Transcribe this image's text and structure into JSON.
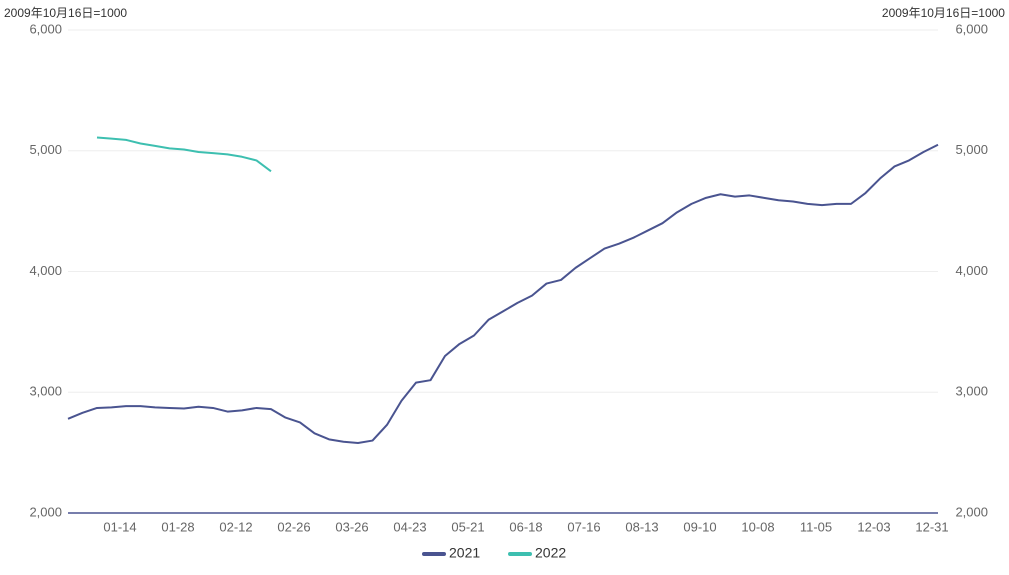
{
  "chart_data": {
    "type": "line",
    "y_label": "2009年10月16日=1000",
    "y2_label": "2009年10月16日=1000",
    "categories": [
      null,
      null,
      null,
      null,
      "01-14",
      null,
      null,
      null,
      "01-28",
      null,
      null,
      null,
      "02-12",
      null,
      null,
      null,
      "02-26",
      null,
      null,
      null,
      "03-26",
      null,
      null,
      null,
      "04-23",
      null,
      null,
      null,
      "05-21",
      null,
      null,
      null,
      "06-18",
      null,
      null,
      null,
      "07-16",
      null,
      null,
      null,
      "08-13",
      null,
      null,
      null,
      "09-10",
      null,
      null,
      null,
      "10-08",
      null,
      null,
      null,
      "11-05",
      null,
      null,
      null,
      "12-03",
      null,
      null,
      null,
      "12-31"
    ],
    "series": [
      {
        "name": "2021",
        "color": "#4a5490",
        "values": [
          2780,
          2830,
          2870,
          2875,
          2885,
          2885,
          2875,
          2870,
          2865,
          2880,
          2870,
          2840,
          2850,
          2870,
          2860,
          2790,
          2750,
          2660,
          2610,
          2590,
          2580,
          2600,
          2730,
          2930,
          3080,
          3100,
          3300,
          3400,
          3470,
          3600,
          3670,
          3740,
          3800,
          3900,
          3930,
          4030,
          4110,
          4190,
          4230,
          4280,
          4340,
          4400,
          4490,
          4560,
          4610,
          4640,
          4620,
          4630,
          4610,
          4590,
          4580,
          4560,
          4550,
          4560,
          4560,
          4650,
          4770,
          4870,
          4920,
          4990,
          5050
        ]
      },
      {
        "name": "2022",
        "color": "#3dbfb0",
        "values": [
          null,
          null,
          5110,
          5100,
          5090,
          5060,
          5040,
          5020,
          5010,
          4990,
          4980,
          4970,
          4950,
          4920,
          4830,
          null,
          null,
          null,
          null,
          null,
          null,
          null,
          null,
          null,
          null,
          null,
          null,
          null,
          null,
          null,
          null,
          null,
          null,
          null,
          null,
          null,
          null,
          null,
          null,
          null,
          null,
          null,
          null,
          null,
          null,
          null,
          null,
          null,
          null,
          null,
          null,
          null,
          null,
          null,
          null,
          null,
          null,
          null,
          null,
          null,
          null
        ]
      }
    ],
    "ylim": [
      2000,
      6000
    ],
    "yticks": [
      {
        "value": 2000,
        "label": "2,000"
      },
      {
        "value": 3000,
        "label": "3,000"
      },
      {
        "value": 4000,
        "label": "4,000"
      },
      {
        "value": 5000,
        "label": "5,000"
      },
      {
        "value": 6000,
        "label": "6,000"
      }
    ],
    "y2lim": [
      2000,
      6000
    ],
    "y2ticks": [
      {
        "value": 2000,
        "label": "2,000"
      },
      {
        "value": 3000,
        "label": "3,000"
      },
      {
        "value": 4000,
        "label": "4,000"
      },
      {
        "value": 5000,
        "label": "5,000"
      },
      {
        "value": 6000,
        "label": "6,000"
      }
    ],
    "grid": true
  }
}
